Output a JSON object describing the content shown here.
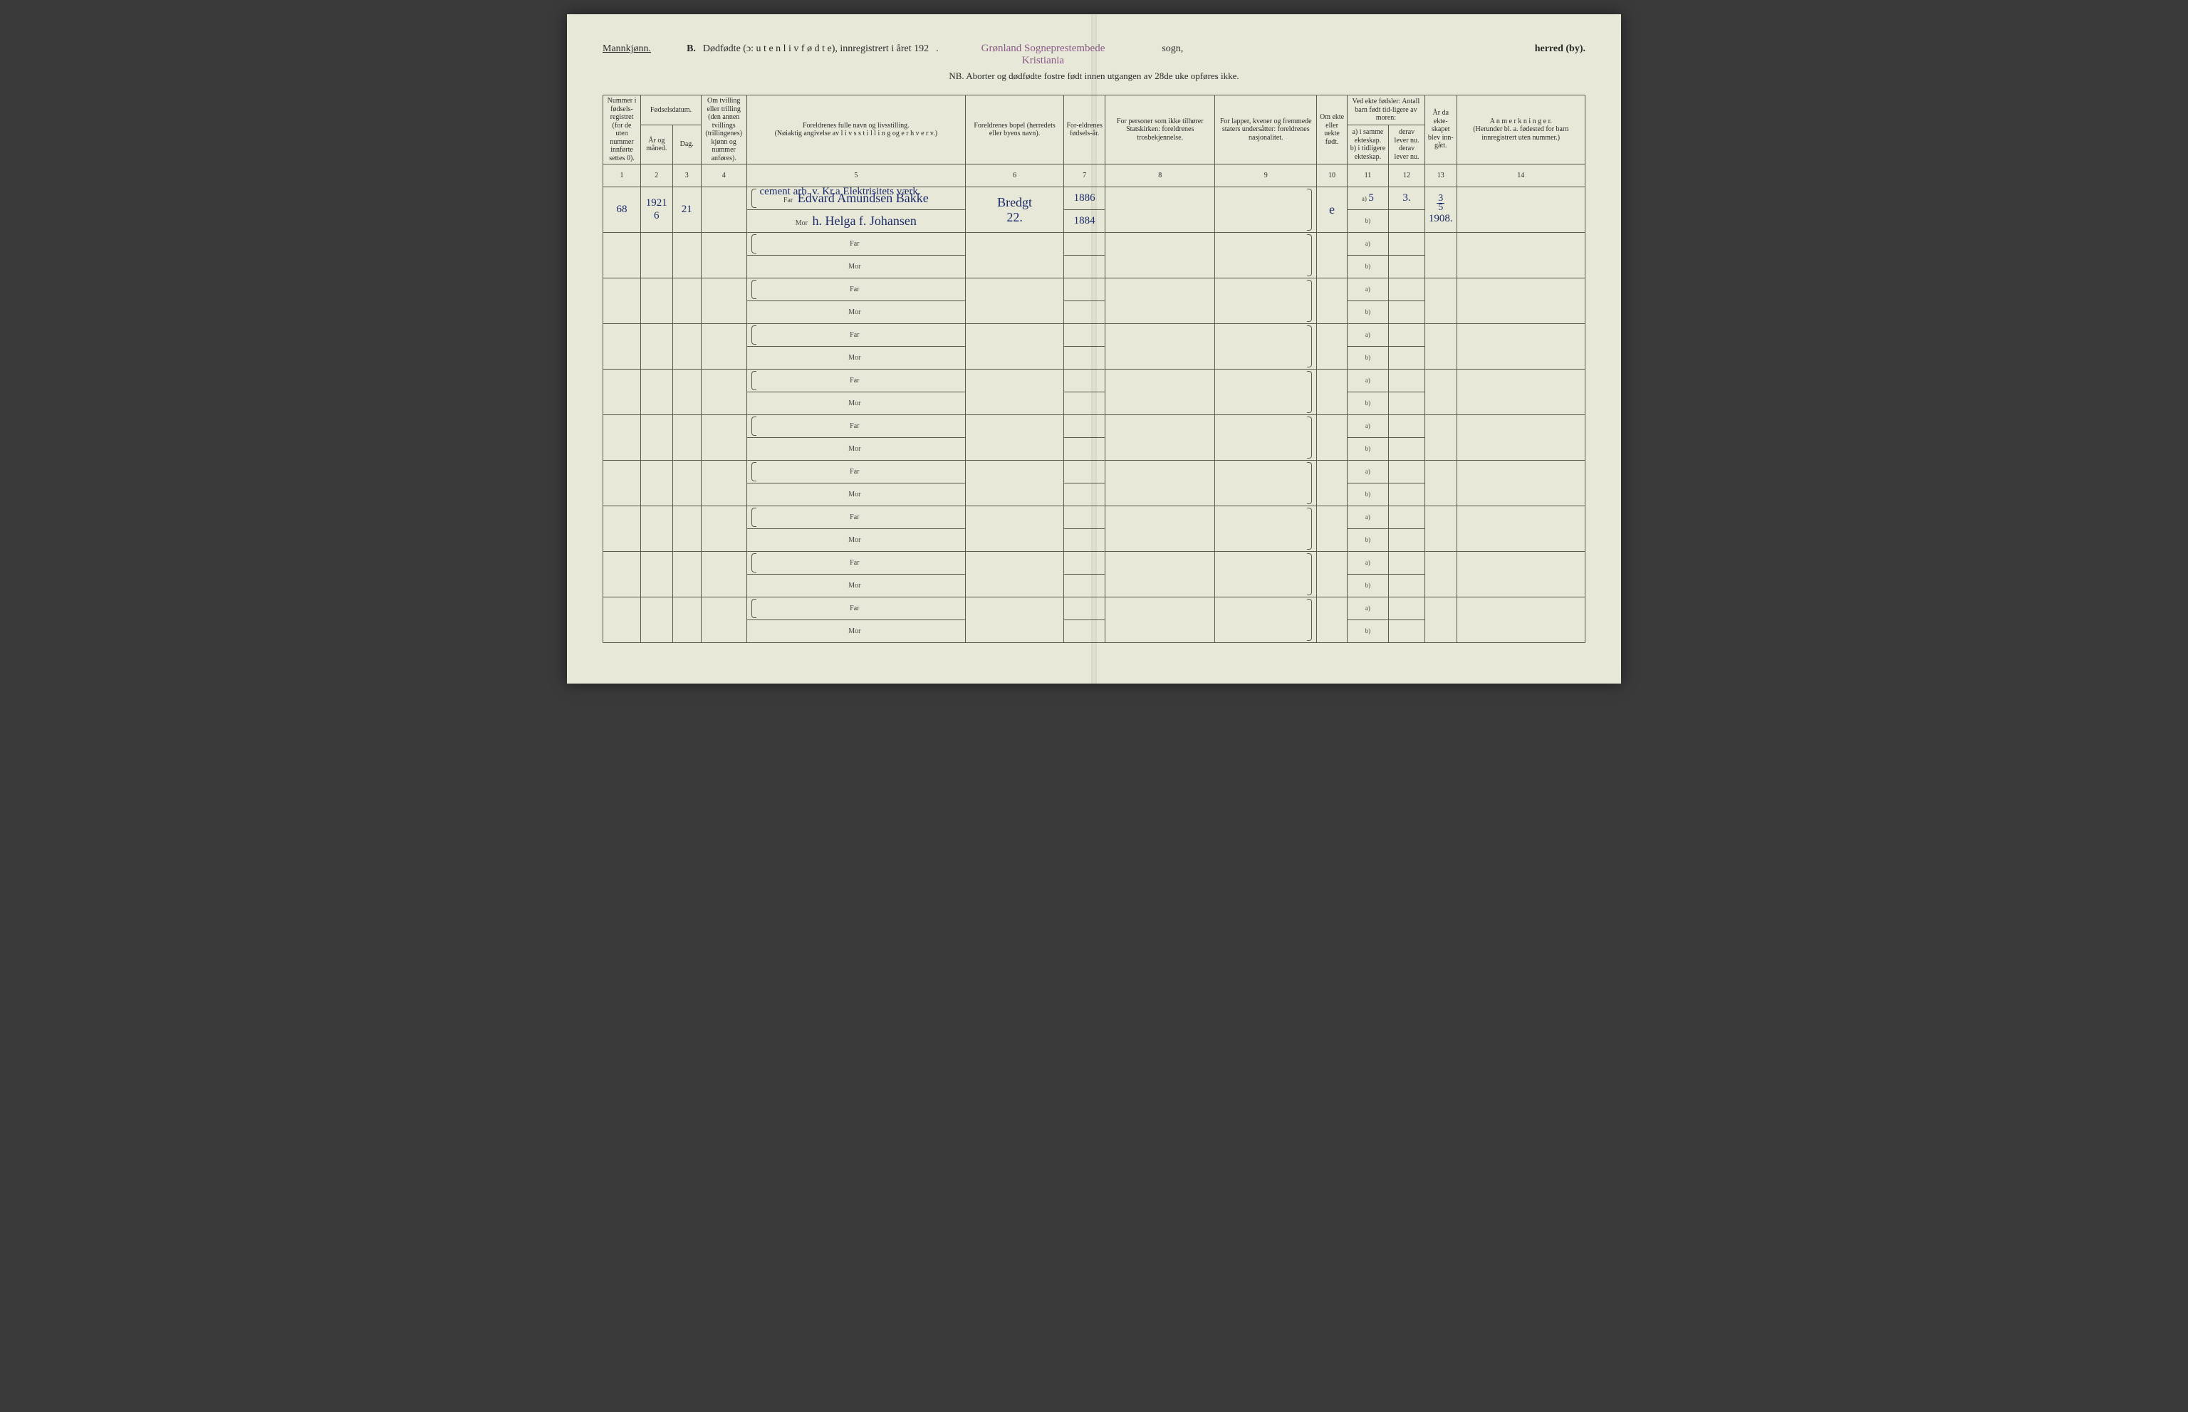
{
  "header": {
    "gender_label": "Mannkjønn.",
    "section_letter": "B.",
    "title_main": "Dødfødte (ɔ:  u t e n  l i v  f ø d t e), innregistrert i året 192",
    "title_suffix_dot": ".",
    "stamp_line1": "Grønland Sogneprestembede",
    "stamp_line2": "Kristiania",
    "sogn_label": "sogn,",
    "herred_label": "herred (by).",
    "nb_line": "NB.  Aborter og dødfødte fostre født innen utgangen av 28de uke opføres ikke."
  },
  "columns": {
    "c1": "Nummer i fødsels-registret (for de uten nummer innførte settes 0).",
    "c2_group": "Fødselsdatum.",
    "c2": "År og måned.",
    "c3": "Dag.",
    "c4": "Om tvilling eller trilling (den annen tvillings (trillingenes) kjønn og nummer anføres).",
    "c5": "Foreldrenes fulle navn og livsstilling.\n(Nøiaktig angivelse av  l i v s s t i l l i n g  og  e r h v e r v.)",
    "c6": "Foreldrenes bopel (herredets eller byens navn).",
    "c7": "For-eldrenes fødsels-år.",
    "c8": "For personer som ikke tilhører Statskirken: foreldrenes trosbekjennelse.",
    "c9": "For lapper, kvener og fremmede staters undersåtter: foreldrenes nasjonalitet.",
    "c10": "Om ekte eller uekte født.",
    "c11_group": "Ved ekte fødsler: Antall barn født tid-ligere av moren:",
    "c11a": "a) i samme ekteskap.",
    "c11b": "b) i tidligere ekteskap.",
    "c12a": "derav lever nu.",
    "c12b": "derav lever nu.",
    "c13": "År da ekte-skapet blev inn-gått.",
    "c14": "A n m e r k n i n g e r.\n(Herunder bl. a. fødested for barn innregistrert uten nummer.)"
  },
  "col_nums": [
    "1",
    "2",
    "3",
    "4",
    "5",
    "6",
    "7",
    "8",
    "9",
    "10",
    "11",
    "12",
    "13",
    "14"
  ],
  "labels": {
    "far": "Far",
    "mor": "Mor",
    "a": "a)",
    "b": "b)"
  },
  "entry": {
    "number": "68",
    "year_month_top": "1921",
    "year_month_bottom": "6",
    "day": "21",
    "occupation_note": "cement arb. v. Kr.a Elektrisitets værk.",
    "far_name": "Edvard Amundsen Bakke",
    "mor_name": "h. Helga f. Johansen",
    "bopel_top": "Bredgt",
    "bopel_bottom": "22.",
    "far_birth": "1886",
    "mor_birth": "1884",
    "ekte": "e",
    "col11a": "5",
    "col12a": "3.",
    "col13_frac_num": "3",
    "col13_frac_den": "5",
    "col13_year": "1908."
  },
  "style": {
    "page_bg": "#e8e8d8",
    "border_color": "#5a5a4a",
    "print_text_color": "#2a2a2a",
    "stamp_color": "#8a5a8a",
    "handwriting_color": "#1a2a6a",
    "header_fontsize": 14,
    "th_fontsize": 10,
    "handwriting_fontsize": 18
  }
}
